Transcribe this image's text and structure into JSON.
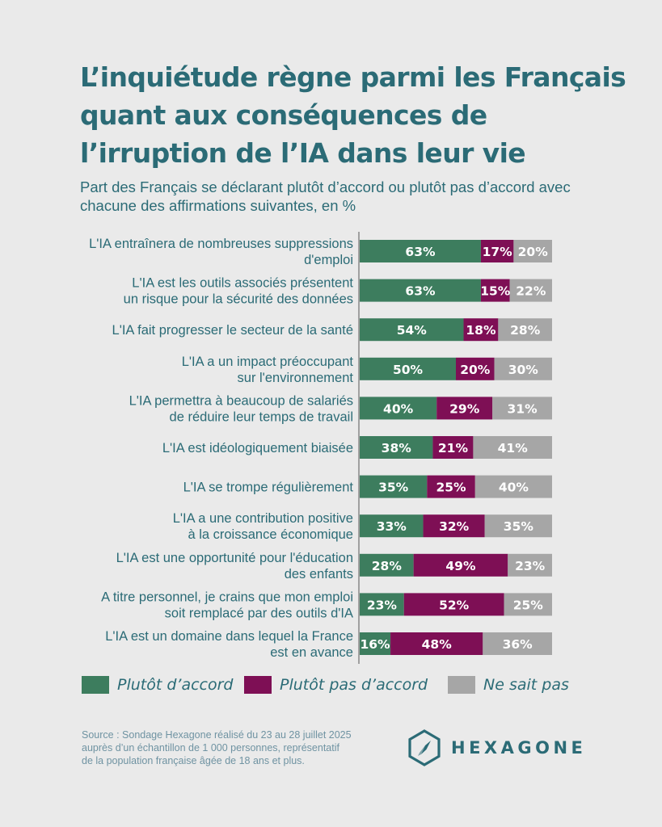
{
  "header": {
    "title": "L’inquiétude règne parmi les Français quant aux conséquences de l’irruption de l’IA dans leur vie",
    "subtitle": "Part des Français se déclarant plutôt d’accord ou plutôt pas d’accord avec chacune des affirmations suivantes, en %"
  },
  "chart_data": {
    "type": "bar",
    "orientation": "horizontal",
    "stacked": true,
    "xlim": [
      0,
      100
    ],
    "unit": "%",
    "grid": false,
    "legend_position": "bottom",
    "categories": [
      [
        "L'IA entraînera de nombreuses suppressions",
        "d'emploi"
      ],
      [
        "L'IA est les outils associés présentent",
        "un risque pour la sécurité des données"
      ],
      [
        "L'IA fait progresser le secteur de la santé"
      ],
      [
        "L'IA a un impact préoccupant",
        "sur l'environnement"
      ],
      [
        "L'IA permettra à beaucoup de salariés",
        "de réduire leur temps de travail"
      ],
      [
        "L'IA est idéologiquement biaisée"
      ],
      [
        "L'IA se trompe régulièrement"
      ],
      [
        "L'IA a une contribution positive",
        "à la croissance économique"
      ],
      [
        "L'IA est une opportunité pour l'éducation",
        "des enfants"
      ],
      [
        "A titre personnel, je crains que mon emploi",
        "soit remplacé par des outils d'IA"
      ],
      [
        "L'IA est un domaine dans lequel la France",
        "est en avance"
      ]
    ],
    "series": [
      {
        "name": "Plutôt d’accord",
        "color": "#3d7d5e",
        "values": [
          63,
          63,
          54,
          50,
          40,
          38,
          35,
          33,
          28,
          23,
          16
        ]
      },
      {
        "name": "Plutôt pas d’accord",
        "color": "#7e0f55",
        "values": [
          17,
          15,
          18,
          20,
          29,
          21,
          25,
          32,
          49,
          52,
          48
        ]
      },
      {
        "name": "Ne sait pas",
        "color": "#a6a6a6",
        "values": [
          20,
          22,
          28,
          30,
          31,
          41,
          40,
          35,
          23,
          25,
          36
        ]
      }
    ]
  },
  "footer": {
    "source_lines": [
      "Source : Sondage Hexagone réalisé du 23 au 28 juillet 2025",
      "auprès d’un échantillon de 1 000 personnes, représentatif",
      "de la population française âgée de 18 ans et plus."
    ],
    "logo_text": "HEXAGONE"
  }
}
